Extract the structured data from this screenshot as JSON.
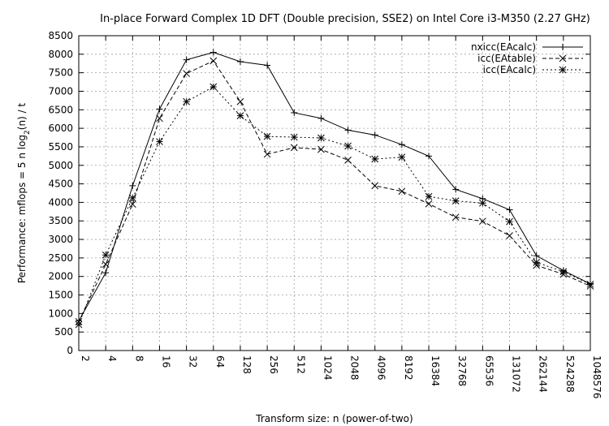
{
  "chart_data": {
    "type": "line",
    "title": "In-place Forward Complex 1D DFT (Double precision, SSE2) on Intel Core i3-M350 (2.27 GHz)",
    "xlabel": "Transform size: n (power-of-two)",
    "ylabel": "Performance: mflops = 5 n log2(n) / t",
    "categories": [
      "2",
      "4",
      "8",
      "16",
      "32",
      "64",
      "128",
      "256",
      "512",
      "1024",
      "2048",
      "4096",
      "8192",
      "16384",
      "32768",
      "65536",
      "131072",
      "262144",
      "524288",
      "1048576"
    ],
    "ylim": [
      0,
      8500
    ],
    "yticks": [
      "0",
      "500",
      "1000",
      "1500",
      "2000",
      "2500",
      "3000",
      "3500",
      "4000",
      "4500",
      "5000",
      "5500",
      "6000",
      "6500",
      "7000",
      "7500",
      "8000",
      "8500"
    ],
    "grid": true,
    "legend_position": "top-right",
    "series": [
      {
        "name": "nxicc(EAcalc)",
        "marker": "plus",
        "line": "solid",
        "values": [
          800,
          2100,
          4450,
          6520,
          7850,
          8050,
          7800,
          7700,
          6420,
          6270,
          5950,
          5820,
          5560,
          5250,
          4350,
          4100,
          3800,
          2560,
          2160,
          1800
        ]
      },
      {
        "name": "icc(EAtable)",
        "marker": "cross",
        "line": "dashed",
        "values": [
          780,
          2330,
          3950,
          6270,
          7480,
          7820,
          6720,
          5300,
          5480,
          5430,
          5140,
          4450,
          4300,
          3960,
          3600,
          3490,
          3100,
          2300,
          2060,
          1740
        ]
      },
      {
        "name": "icc(EAcalc)",
        "marker": "star",
        "line": "dotted",
        "values": [
          700,
          2580,
          4120,
          5640,
          6720,
          7120,
          6340,
          5780,
          5760,
          5740,
          5520,
          5170,
          5220,
          4160,
          4040,
          3980,
          3480,
          2380,
          2130,
          1790
        ]
      }
    ]
  }
}
